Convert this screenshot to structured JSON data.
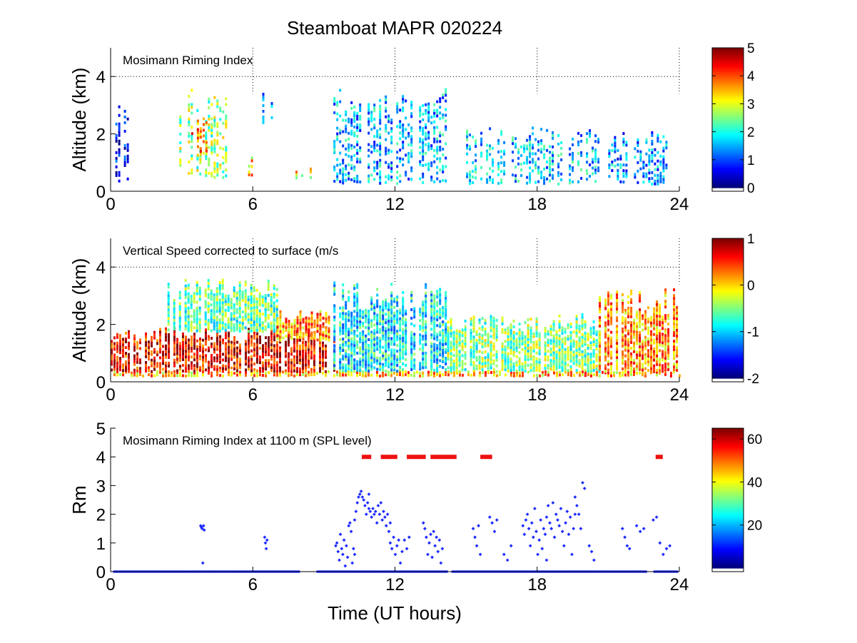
{
  "figure": {
    "title": "Steamboat MAPR 020224",
    "colors": {
      "rime": "#1f2cff",
      "event_bar": "#ee1111",
      "axis": "#000000"
    }
  },
  "chart_data": [
    {
      "type": "heatmap",
      "name": "riming-index",
      "annotation": "Mosimann Riming Index",
      "ylabel": "Altitude (km)",
      "xlabel": "",
      "xlim": [
        0,
        24
      ],
      "ylim": [
        0,
        5
      ],
      "xticks": [
        "0",
        "6",
        "12",
        "18",
        "24"
      ],
      "yticks": [
        "0",
        "2",
        "4"
      ],
      "colorbar": {
        "range": [
          0,
          5
        ],
        "ticks": [
          "0",
          "1",
          "2",
          "3",
          "4",
          "5"
        ]
      },
      "dotted_lines": {
        "x": [
          6,
          12,
          18,
          24
        ],
        "y": 4
      },
      "regions": [
        {
          "t0": 0.2,
          "t1": 0.9,
          "z0": 0.4,
          "z1": 3.5,
          "level": 0.6
        },
        {
          "t0": 2.9,
          "t1": 4.9,
          "z0": 0.5,
          "z1": 3.6,
          "level": 2.6
        },
        {
          "t0": 3.4,
          "t1": 4.2,
          "z0": 1.3,
          "z1": 2.6,
          "level": 3.8
        },
        {
          "t0": 5.8,
          "t1": 6.0,
          "z0": 0.6,
          "z1": 1.5,
          "level": 3.4
        },
        {
          "t0": 6.4,
          "t1": 7.0,
          "z0": 2.4,
          "z1": 3.6,
          "level": 1.4
        },
        {
          "t0": 7.8,
          "t1": 8.5,
          "z0": 0.5,
          "z1": 0.9,
          "level": 3.2
        },
        {
          "t0": 9.4,
          "t1": 14.2,
          "z0": 0.3,
          "z1": 3.6,
          "level": 1.5
        },
        {
          "t0": 15.0,
          "t1": 20.6,
          "z0": 0.3,
          "z1": 2.3,
          "level": 1.6
        },
        {
          "t0": 21.0,
          "t1": 23.6,
          "z0": 0.3,
          "z1": 2.1,
          "level": 1.3
        }
      ]
    },
    {
      "type": "heatmap",
      "name": "vertical-speed",
      "annotation": "Vertical Speed corrected to surface (m/s",
      "ylabel": "Altitude (km)",
      "xlabel": "",
      "xlim": [
        0,
        24
      ],
      "ylim": [
        0,
        5
      ],
      "xticks": [
        "0",
        "6",
        "12",
        "18",
        "24"
      ],
      "yticks": [
        "0",
        "2",
        "4"
      ],
      "colorbar": {
        "range": [
          -2,
          1
        ],
        "ticks": [
          "1",
          "0",
          "-1",
          "-2"
        ]
      },
      "dotted_lines": {
        "x": [
          6,
          12,
          18,
          24
        ],
        "y": 4
      },
      "regions": [
        {
          "t0": 0.0,
          "t1": 24.0,
          "z0": 0.25,
          "z1": 0.4,
          "level": 0.1
        },
        {
          "t0": 0.0,
          "t1": 9.4,
          "z0": 0.4,
          "z1": 1.9,
          "level": 0.65
        },
        {
          "t0": 2.4,
          "t1": 7.0,
          "z0": 1.8,
          "z1": 3.6,
          "level": -0.6
        },
        {
          "t0": 7.0,
          "t1": 9.2,
          "z0": 1.5,
          "z1": 2.5,
          "level": 0.2
        },
        {
          "t0": 9.4,
          "t1": 14.2,
          "z0": 0.4,
          "z1": 3.6,
          "level": -0.9
        },
        {
          "t0": 14.2,
          "t1": 20.6,
          "z0": 0.4,
          "z1": 2.4,
          "level": -0.5
        },
        {
          "t0": 20.6,
          "t1": 23.9,
          "z0": 0.4,
          "z1": 3.3,
          "level": 0.2
        }
      ]
    },
    {
      "type": "scatter",
      "name": "riming-index-1100m",
      "annotation": "Mosimann Riming Index at 1100 m (SPL level)",
      "ylabel": "Rm",
      "xlabel": "Time (UT hours)",
      "xlim": [
        0,
        24
      ],
      "ylim": [
        0,
        5
      ],
      "xticks": [
        "0",
        "6",
        "12",
        "18",
        "24"
      ],
      "yticks": [
        "0",
        "1",
        "2",
        "3",
        "4",
        "5"
      ],
      "colorbar": {
        "range": [
          0,
          65
        ],
        "ticks": [
          "60",
          "40",
          "20"
        ]
      },
      "baseline_value": 0,
      "baseline_gaps": [
        [
          8.0,
          8.7
        ],
        [
          14.2,
          14.4
        ],
        [
          22.6,
          22.9
        ]
      ],
      "point_segments": [
        {
          "t0": 3.8,
          "t1": 3.95,
          "values": [
            1.6,
            1.55,
            1.5,
            0.3,
            1.6,
            1.45
          ]
        },
        {
          "t0": 6.5,
          "t1": 6.6,
          "values": [
            1.2,
            1.0,
            0.8,
            1.1
          ]
        },
        {
          "t0": 9.5,
          "t1": 10.3,
          "values": [
            0.9,
            1.0,
            0.7,
            0.4,
            1.3,
            0.8,
            0.6,
            1.1,
            0.2,
            0.9,
            0.5,
            1.6,
            1.7,
            1.4,
            0.3,
            0.8,
            0.6
          ]
        },
        {
          "t0": 10.3,
          "t1": 10.9,
          "values": [
            1.8,
            2.1,
            2.4,
            2.6,
            2.7,
            2.8,
            2.6,
            2.5,
            2.3,
            2.0,
            2.4,
            2.7
          ]
        },
        {
          "t0": 10.9,
          "t1": 11.8,
          "values": [
            2.2,
            2.1,
            1.9,
            2.2,
            2.0,
            2.1,
            1.7,
            2.3,
            2.0,
            2.4,
            1.8,
            2.1,
            1.9,
            1.6,
            2.0,
            1.4,
            1.7
          ]
        },
        {
          "t0": 11.8,
          "t1": 12.3,
          "values": [
            1.0,
            0.8,
            1.2,
            0.6,
            0.9,
            1.1,
            0.3,
            0.7
          ]
        },
        {
          "t0": 12.4,
          "t1": 12.6,
          "values": [
            1.1,
            0.8,
            1.2
          ]
        },
        {
          "t0": 13.2,
          "t1": 14.0,
          "values": [
            1.7,
            1.5,
            1.2,
            0.6,
            1.0,
            1.3,
            0.5,
            1.4,
            0.9,
            1.2,
            0.7,
            1.1,
            0.3,
            0.8
          ]
        },
        {
          "t0": 15.3,
          "t1": 15.6,
          "values": [
            1.5,
            1.2,
            0.9,
            1.6,
            0.6
          ]
        },
        {
          "t0": 16.0,
          "t1": 16.3,
          "values": [
            1.9,
            1.7,
            1.4,
            1.8
          ]
        },
        {
          "t0": 16.6,
          "t1": 16.9,
          "values": [
            0.6,
            0.4,
            0.9
          ]
        },
        {
          "t0": 17.4,
          "t1": 18.4,
          "values": [
            1.6,
            1.3,
            1.8,
            2.0,
            1.5,
            0.9,
            1.7,
            1.2,
            2.2,
            1.4,
            0.6,
            1.1,
            1.8,
            0.8,
            1.5,
            1.3,
            0.4
          ]
        },
        {
          "t0": 18.4,
          "t1": 19.6,
          "values": [
            1.9,
            2.3,
            1.7,
            1.5,
            2.4,
            1.2,
            2.0,
            1.8,
            1.6,
            2.2,
            1.4,
            0.9,
            1.7,
            2.1,
            1.3,
            1.9,
            0.6,
            1.5,
            2.0
          ]
        },
        {
          "t0": 19.6,
          "t1": 20.0,
          "values": [
            2.6,
            2.3,
            2.0,
            1.5,
            3.1,
            2.9
          ]
        },
        {
          "t0": 20.2,
          "t1": 20.4,
          "values": [
            0.9,
            0.7,
            0.4
          ]
        },
        {
          "t0": 21.6,
          "t1": 21.9,
          "values": [
            1.5,
            1.2,
            0.9,
            0.8
          ]
        },
        {
          "t0": 22.2,
          "t1": 22.5,
          "values": [
            1.6,
            1.4,
            1.5
          ]
        },
        {
          "t0": 22.9,
          "t1": 23.6,
          "values": [
            1.8,
            1.9,
            1.0,
            0.6,
            0.8,
            0.9
          ]
        }
      ],
      "event_bars": {
        "value": 4,
        "intervals": [
          [
            10.6,
            11.0
          ],
          [
            11.4,
            12.1
          ],
          [
            12.5,
            13.3
          ],
          [
            13.5,
            14.6
          ],
          [
            15.6,
            16.1
          ],
          [
            23.0,
            23.3
          ]
        ]
      }
    }
  ]
}
